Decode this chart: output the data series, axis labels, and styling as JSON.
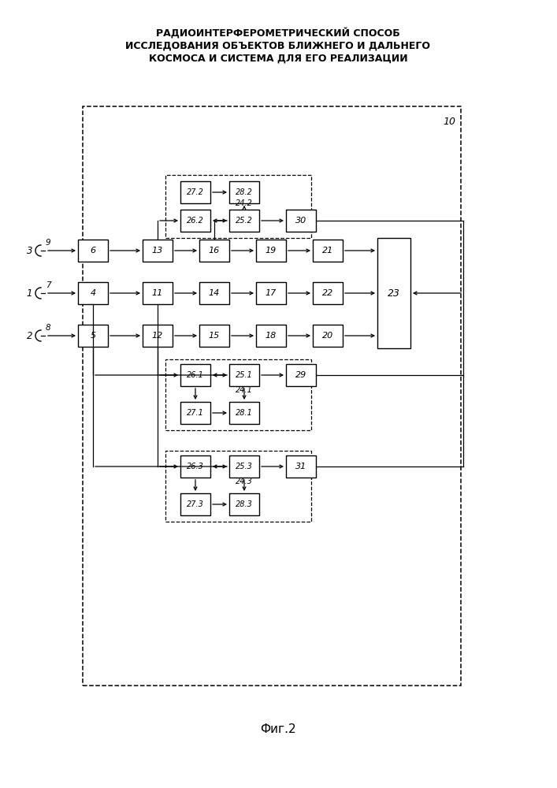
{
  "title_lines": [
    "РАДИОИНТЕРФЕРОМЕТРИЧЕСКИЙ СПОСОБ",
    "ИССЛЕДОВАНИЯ ОБЪЕКТОВ БЛИЖНЕГО И ДАЛЬНЕГО",
    "КОСМОСА И СИСТЕМА ДЛЯ ЕГО РЕАЛИЗАЦИИ"
  ],
  "caption": "Фиг.2",
  "bg_color": "#ffffff",
  "box_color": "#ffffff",
  "box_edge": "#000000",
  "text_color": "#000000"
}
